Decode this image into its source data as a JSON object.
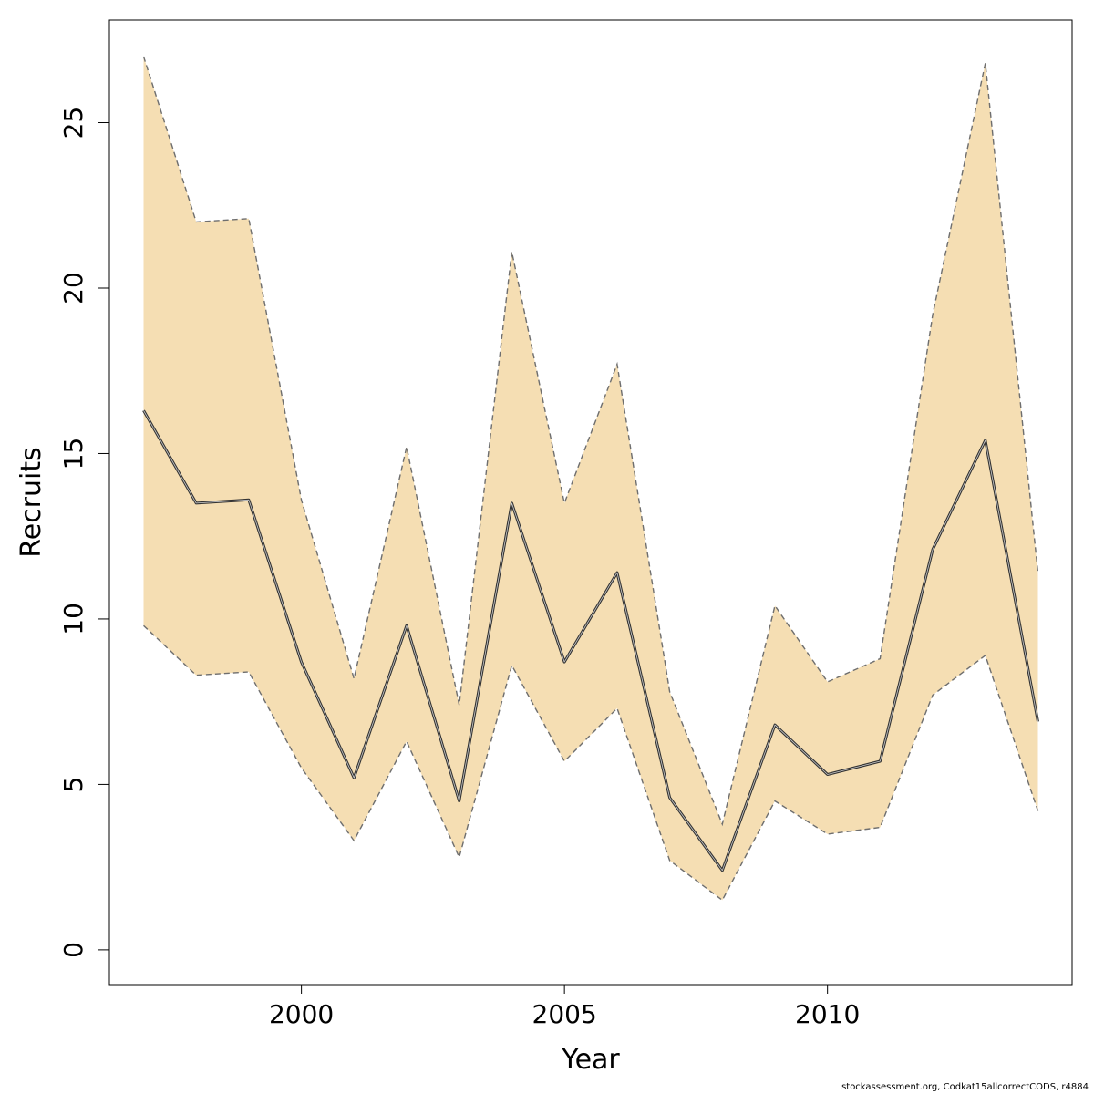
{
  "chart_data": {
    "type": "area",
    "title": "",
    "xlabel": "Year",
    "ylabel": "Recruits",
    "x": [
      1997,
      1998,
      1999,
      2000,
      2001,
      2002,
      2003,
      2004,
      2005,
      2006,
      2007,
      2008,
      2009,
      2010,
      2011,
      2012,
      2013,
      2014
    ],
    "series": [
      {
        "role": "estimate",
        "values": [
          16.3,
          13.5,
          13.6,
          8.7,
          5.2,
          9.8,
          4.5,
          13.5,
          8.7,
          11.4,
          4.6,
          2.4,
          6.8,
          5.3,
          5.7,
          12.1,
          15.4,
          6.9
        ]
      },
      {
        "role": "upper",
        "values": [
          27.0,
          22.0,
          22.1,
          13.6,
          8.2,
          15.2,
          7.4,
          21.1,
          13.5,
          17.7,
          7.8,
          3.8,
          10.4,
          8.1,
          8.8,
          19.2,
          26.8,
          11.4
        ]
      },
      {
        "role": "lower",
        "values": [
          9.8,
          8.3,
          8.4,
          5.5,
          3.3,
          6.3,
          2.8,
          8.6,
          5.7,
          7.3,
          2.7,
          1.5,
          4.5,
          3.5,
          3.7,
          7.7,
          8.9,
          4.2
        ]
      }
    ],
    "xlim": [
      1996.35,
      2014.65
    ],
    "ylim": [
      -1.05,
      28.1
    ],
    "xticks": [
      2000,
      2005,
      2010
    ],
    "xtick_labels": [
      "2000",
      "2005",
      "2010"
    ],
    "yticks": [
      0,
      5,
      10,
      15,
      20,
      25
    ],
    "ytick_labels": [
      "0",
      "5",
      "10",
      "15",
      "20",
      "25"
    ],
    "grid": false,
    "colors": {
      "band": "#f5deb3",
      "band_edge": "#6e6e6e",
      "line": "#333333",
      "line_highlight": "#cccccc"
    }
  },
  "footer": {
    "credit": "stockassessment.org, Codkat15allcorrectCODS, r4884"
  }
}
